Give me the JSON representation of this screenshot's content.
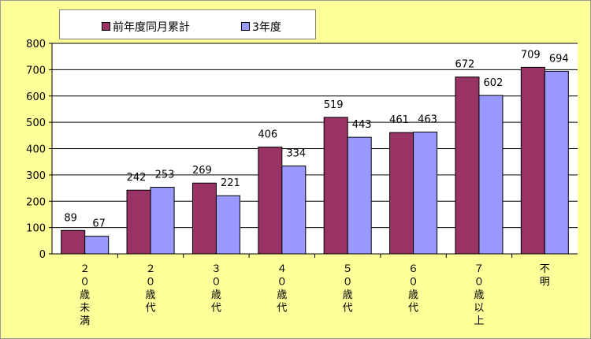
{
  "chart_data": {
    "type": "bar",
    "categories": [
      "２０歳未満",
      "２０歳代",
      "３０歳代",
      "４０歳代",
      "５０歳代",
      "６０歳代",
      "７０歳以上",
      "不明"
    ],
    "series": [
      {
        "name": "前年度同月累計",
        "color": "#993366",
        "values": [
          89,
          242,
          269,
          406,
          519,
          461,
          672,
          709
        ]
      },
      {
        "name": "3年度",
        "color": "#9999FF",
        "values": [
          67,
          253,
          221,
          334,
          443,
          463,
          602,
          694
        ]
      }
    ],
    "ylim": [
      0,
      800
    ],
    "yticks": [
      0,
      100,
      200,
      300,
      400,
      500,
      600,
      700,
      800
    ],
    "grid": true,
    "legend_position": "top-left",
    "title": "",
    "xlabel": "",
    "ylabel": ""
  }
}
